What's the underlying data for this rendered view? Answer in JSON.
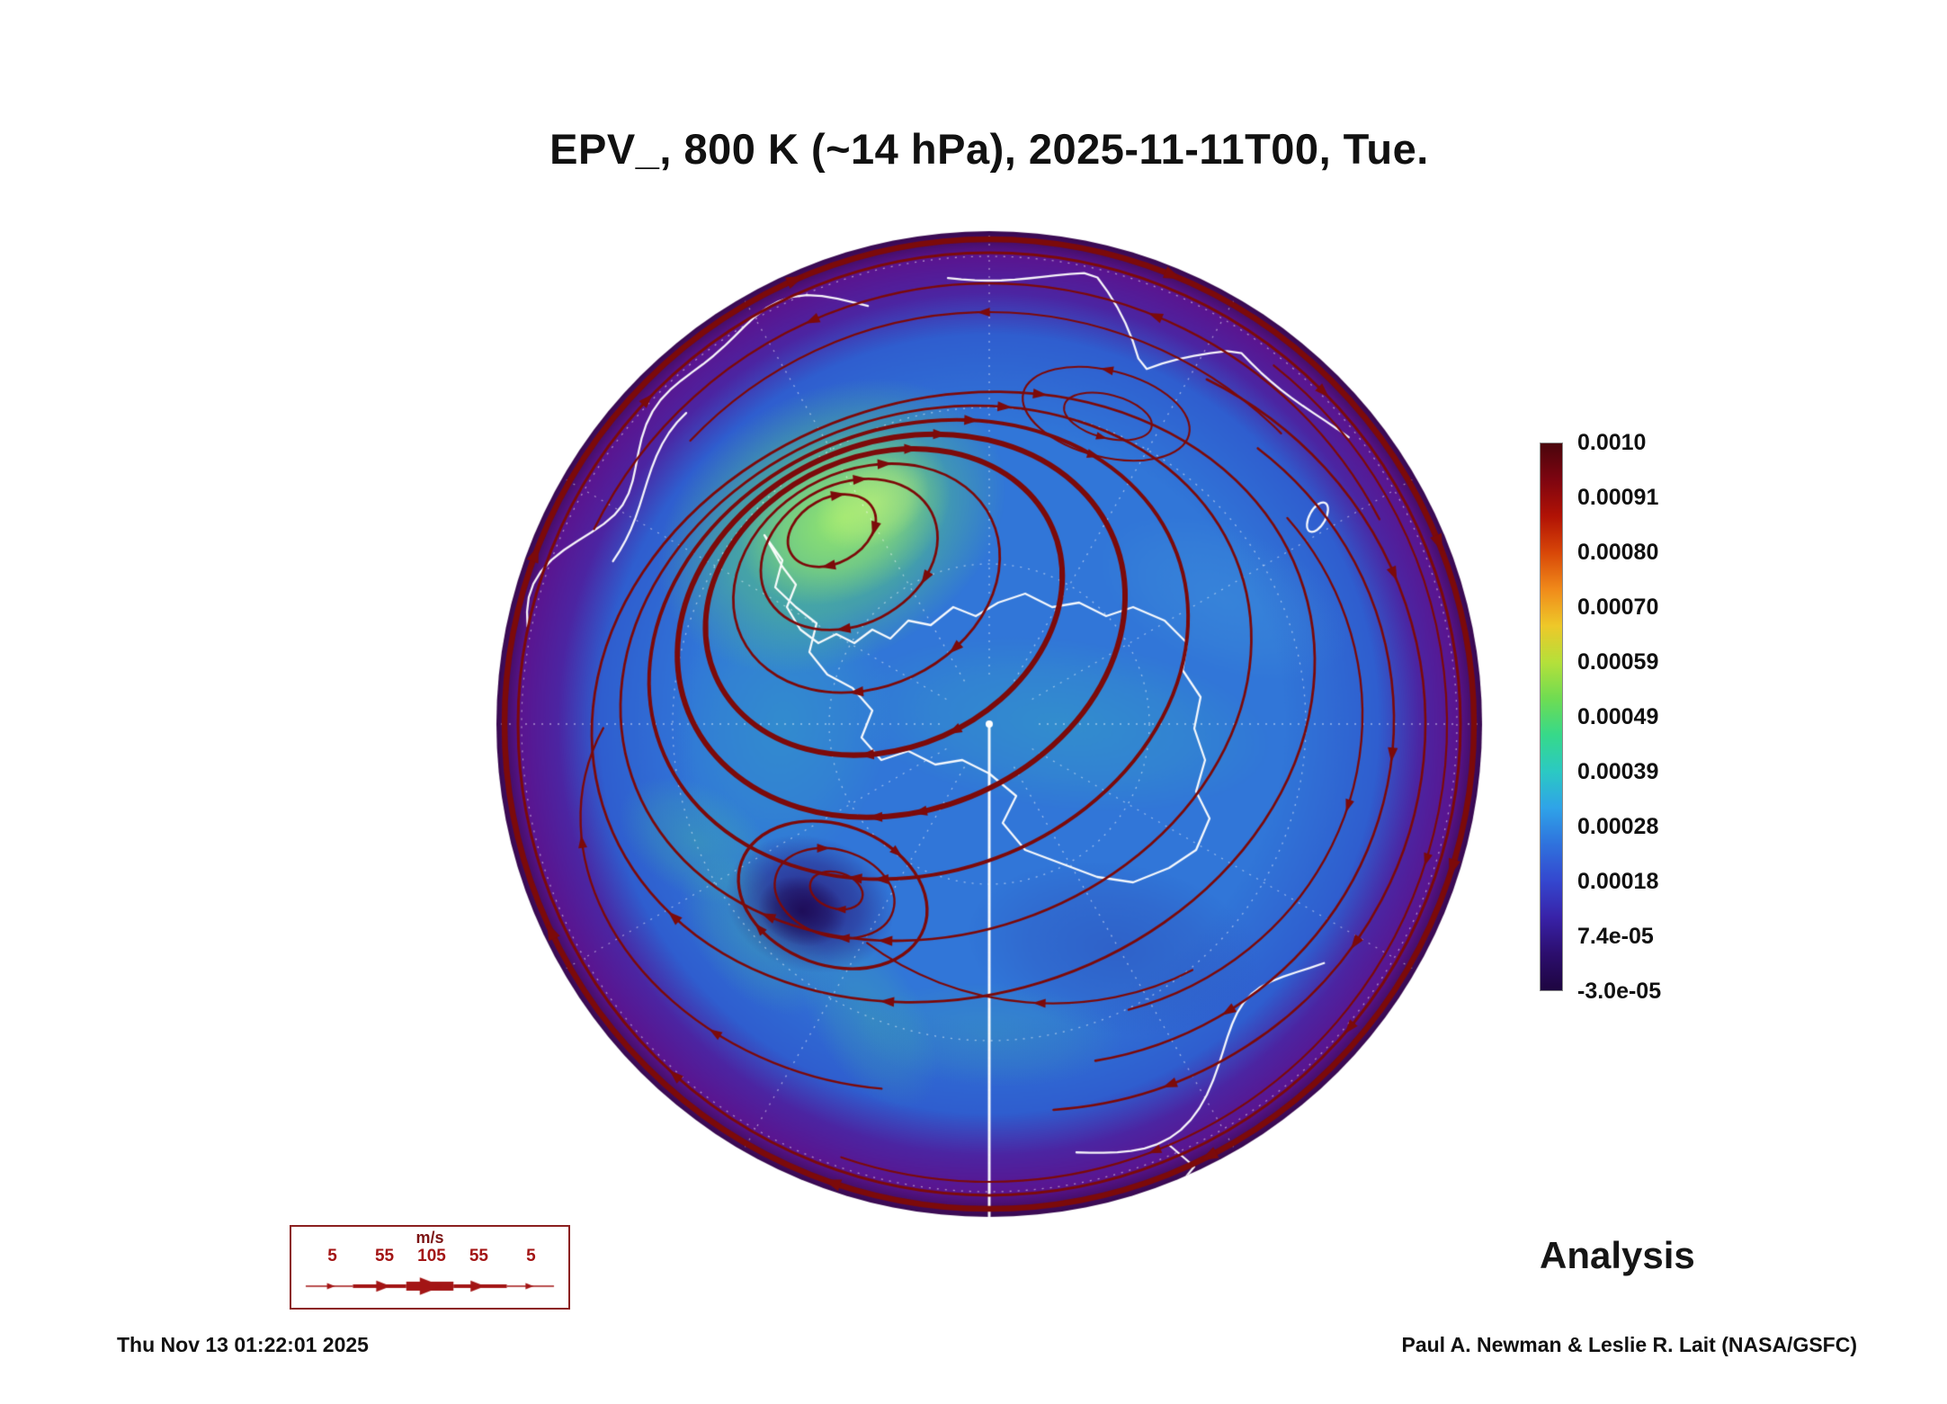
{
  "title": "EPV_, 800 K (~14 hPa), 2025-11-11T00, Tue.",
  "annotations": {
    "analysis_label": "Analysis",
    "timestamp": "Thu Nov 13 01:22:01 2025",
    "credit": "Paul A. Newman & Leslie R. Lait (NASA/GSFC)"
  },
  "colorbar": {
    "ticks": [
      "0.0010",
      "0.00091",
      "0.00080",
      "0.00070",
      "0.00059",
      "0.00049",
      "0.00039",
      "0.00028",
      "0.00018",
      "7.4e-05",
      "-3.0e-05"
    ],
    "gradient": [
      "#4a050c",
      "#7e0510",
      "#b11205",
      "#d84708",
      "#f08a1a",
      "#eec829",
      "#b5e03a",
      "#6fdc52",
      "#36d98a",
      "#2bc9c3",
      "#2fa3e8",
      "#2f72dd",
      "#3447cf",
      "#3822a8",
      "#2c0e6e",
      "#1e0540"
    ]
  },
  "wind_legend": {
    "units_label": "m/s",
    "speed_labels": [
      "5",
      "55",
      "105",
      "55",
      "5"
    ]
  },
  "colors": {
    "text": "#111111",
    "streamline": "#7c0a0a",
    "legend_red": "#a31515",
    "coastline": "#ffffff",
    "map": {
      "blue": "#3176d8",
      "blue_deep": "#2f5ecf",
      "violet": "#4c25a2",
      "purple_edge": "#5a1590",
      "edge_dark": "#38094f",
      "green": "#5fd96e",
      "green_bright": "#a5ee69",
      "green_pale": "#c9f57d",
      "teal": "#38c9b4",
      "arc_green": "#49d090",
      "indigo_blob": "#2a1272",
      "indigo_core": "#1c0850",
      "shade_blue": "#2c3cae",
      "sky": "#58c8e0"
    }
  },
  "chart_data": {
    "type": "heatmap",
    "title": "EPV_, 800 K (~14 hPa), 2025-11-11T00, Tue.",
    "quantity": "EPV",
    "level": "800 K (~14 hPa)",
    "valid_time": "2025-11-11T00, Tue.",
    "projection": "south polar view (Antarctica centered)",
    "colorbar_tick_values": [
      0.001,
      0.00091,
      0.0008,
      0.0007,
      0.00059,
      0.00049,
      0.00039,
      0.00028,
      0.00018,
      7.4e-05,
      -3e-05
    ],
    "value_range": [
      -3e-05,
      0.001
    ],
    "colorbar_position": "right",
    "overlay": {
      "kind": "wind streamlines with arrowheads",
      "units": "m/s",
      "reference_speeds": [
        5,
        55,
        105,
        55,
        5
      ]
    },
    "data_source_label": "Analysis",
    "generated": "Thu Nov 13 01:22:01 2025",
    "credit": "Paul A. Newman & Leslie R. Lait (NASA/GSFC)"
  }
}
